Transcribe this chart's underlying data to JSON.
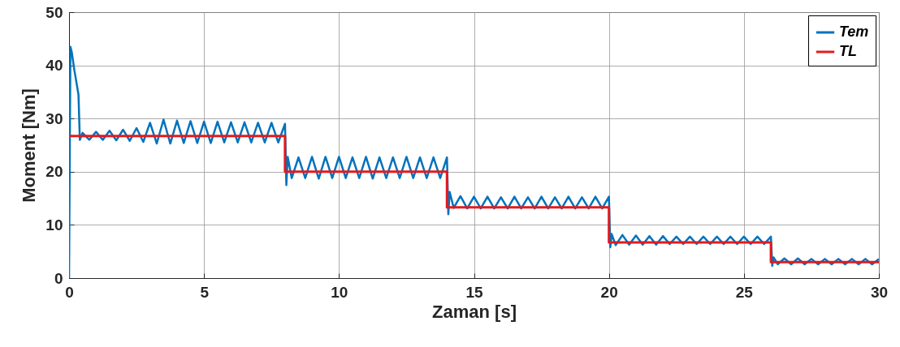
{
  "chart_data": {
    "type": "line",
    "xlabel": "Zaman [s]",
    "ylabel": "Moment [Nm]",
    "xlim": [
      0,
      30
    ],
    "xticks": [
      0,
      5,
      10,
      15,
      20,
      25,
      30
    ],
    "ylim": [
      0,
      50
    ],
    "yticks": [
      0,
      10,
      20,
      30,
      40,
      50
    ],
    "grid": true,
    "legend": "top right",
    "series": [
      {
        "name": "Tem",
        "color": "#0072bd",
        "x": [
          0,
          0.05,
          0.1,
          0.2,
          0.3,
          0.35,
          0.4,
          0.5,
          0.75,
          1,
          1.25,
          1.5,
          1.75,
          2,
          2.25,
          2.5,
          2.75,
          3,
          3.25,
          3.5,
          3.75,
          4,
          4.25,
          4.5,
          4.75,
          5,
          5.25,
          5.5,
          5.75,
          6,
          6.25,
          6.5,
          6.75,
          7,
          7.25,
          7.5,
          7.75,
          8,
          8.05,
          8.1,
          8.25,
          8.5,
          8.75,
          9,
          9.25,
          9.5,
          9.75,
          10,
          10.25,
          10.5,
          10.75,
          11,
          11.25,
          11.5,
          11.75,
          12,
          12.25,
          12.5,
          12.75,
          13,
          13.25,
          13.5,
          13.75,
          14,
          14.05,
          14.1,
          14.25,
          14.5,
          14.75,
          15,
          15.25,
          15.5,
          15.75,
          16,
          16.25,
          16.5,
          16.75,
          17,
          17.25,
          17.5,
          17.75,
          18,
          18.25,
          18.5,
          18.75,
          19,
          19.25,
          19.5,
          19.75,
          20,
          20.05,
          20.1,
          20.25,
          20.5,
          20.75,
          21,
          21.25,
          21.5,
          21.75,
          22,
          22.25,
          22.5,
          22.75,
          23,
          23.25,
          23.5,
          23.75,
          24,
          24.25,
          24.5,
          24.75,
          25,
          25.25,
          25.5,
          25.75,
          26,
          26.05,
          26.1,
          26.25,
          26.5,
          26.75,
          27,
          27.25,
          27.5,
          27.75,
          28,
          28.25,
          28.5,
          28.75,
          29,
          29.25,
          29.5,
          29.75,
          30
        ],
        "values": [
          0,
          43.5,
          42.5,
          39,
          36,
          34.5,
          26,
          27.3,
          26,
          27.5,
          26,
          27.7,
          25.9,
          27.9,
          25.8,
          28.2,
          25.6,
          29.2,
          25.3,
          29.8,
          25.3,
          29.6,
          25.4,
          29.5,
          25.4,
          29.4,
          25.4,
          29.4,
          25.5,
          29.3,
          25.5,
          29.3,
          25.5,
          29.2,
          25.5,
          29.2,
          25.5,
          29,
          17.5,
          22.8,
          18.8,
          22.7,
          18.8,
          22.8,
          18.7,
          22.8,
          18.8,
          22.8,
          18.8,
          22.7,
          18.8,
          22.8,
          18.7,
          22.7,
          18.8,
          22.7,
          18.8,
          22.8,
          18.8,
          22.7,
          18.8,
          22.7,
          18.8,
          22.7,
          12,
          16.2,
          13.2,
          15.4,
          13.1,
          15.3,
          13.1,
          15.3,
          13.1,
          15.2,
          13.1,
          15.3,
          13.1,
          15.2,
          13.1,
          15.3,
          13.1,
          15.2,
          13.1,
          15.3,
          13.1,
          15.2,
          13.1,
          15.3,
          13.1,
          15.3,
          5.8,
          8.3,
          6.2,
          8.1,
          6.3,
          8,
          6.3,
          7.9,
          6.3,
          7.9,
          6.4,
          7.8,
          6.4,
          7.8,
          6.4,
          7.8,
          6.4,
          7.8,
          6.4,
          7.8,
          6.4,
          7.8,
          6.4,
          7.8,
          6.4,
          7.8,
          2.3,
          3.9,
          2.6,
          3.7,
          2.6,
          3.7,
          2.6,
          3.6,
          2.6,
          3.6,
          2.6,
          3.6,
          2.6,
          3.6,
          2.6,
          3.6,
          2.6,
          3.6
        ]
      },
      {
        "name": "TL",
        "color": "#e41a1c",
        "type": "step",
        "x": [
          0,
          8,
          14,
          20,
          26,
          30
        ],
        "values": [
          26.7,
          20,
          13.3,
          6.7,
          3,
          3
        ]
      }
    ]
  }
}
